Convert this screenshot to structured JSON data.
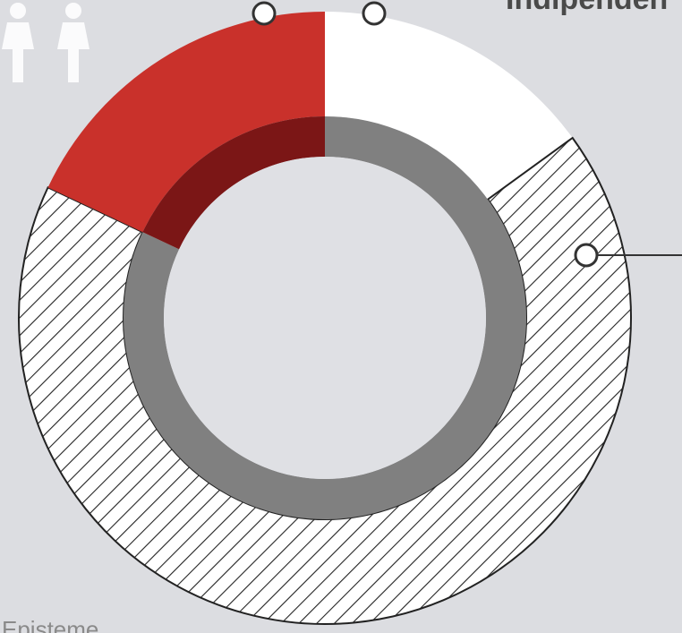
{
  "chart_data": {
    "type": "pie",
    "annotations": [
      "Indipenden",
      "Episteme"
    ],
    "values": [
      15,
      67,
      18
    ],
    "colors": [
      "#ffffff",
      "#ffffff",
      "#c9312b"
    ],
    "patterns": [
      "solid",
      "hatch",
      "solid"
    ],
    "inner_ring": {
      "values": [
        82,
        18
      ],
      "colors": [
        "#808080",
        "#7b1616"
      ]
    }
  }
}
